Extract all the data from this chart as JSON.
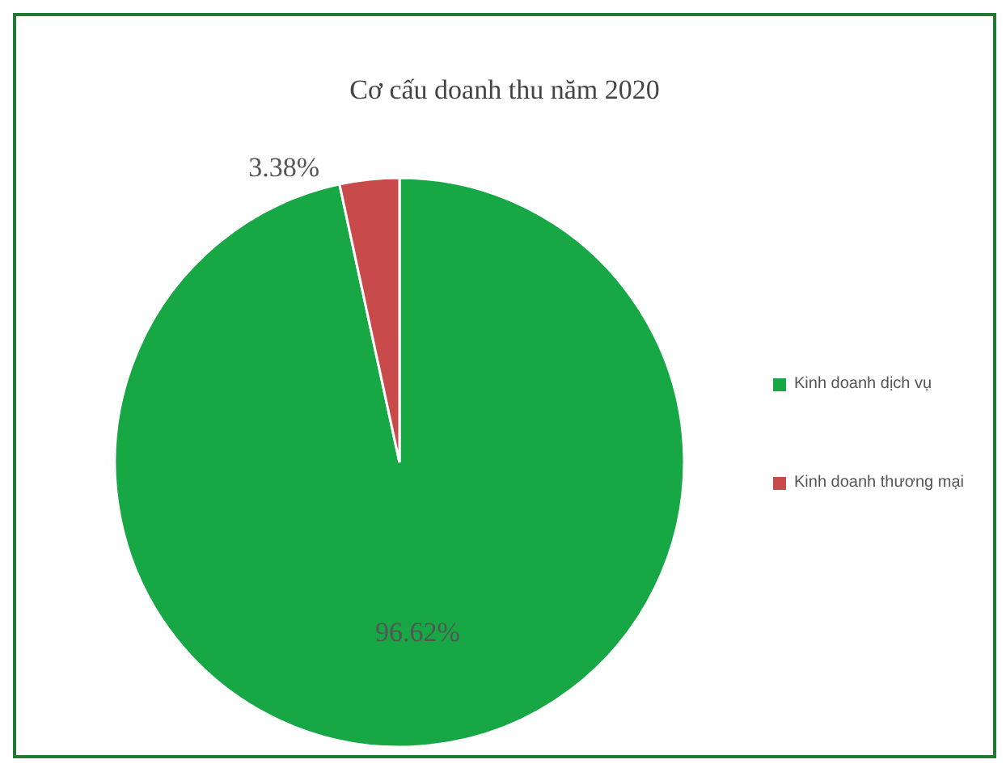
{
  "chart_data": {
    "type": "pie",
    "title": "Cơ cấu doanh thu năm 2020",
    "categories": [
      "Kinh doanh dịch vụ",
      "Kinh doanh thương mại"
    ],
    "values": [
      96.62,
      3.38
    ],
    "colors": [
      "#17a745",
      "#c94a4a"
    ],
    "value_labels": [
      "96.62%",
      "3.38%"
    ],
    "legend": "right"
  }
}
